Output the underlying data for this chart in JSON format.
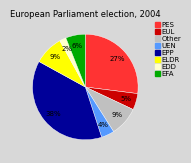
{
  "title": "European Parliament election, 2004",
  "labels": [
    "PES",
    "EUL",
    "Other",
    "UEN",
    "EPP",
    "ELDR",
    "EDD",
    "EFA"
  ],
  "values": [
    27,
    5,
    9,
    4,
    38,
    9,
    2,
    6
  ],
  "colors": [
    "#FF3333",
    "#CC0000",
    "#C0C0C0",
    "#5599FF",
    "#000099",
    "#FFFF00",
    "#FFFFCC",
    "#00AA00"
  ],
  "startangle": 90,
  "title_fontsize": 6,
  "legend_fontsize": 5,
  "pct_fontsize": 5,
  "bg_color": "#D8D8D8"
}
